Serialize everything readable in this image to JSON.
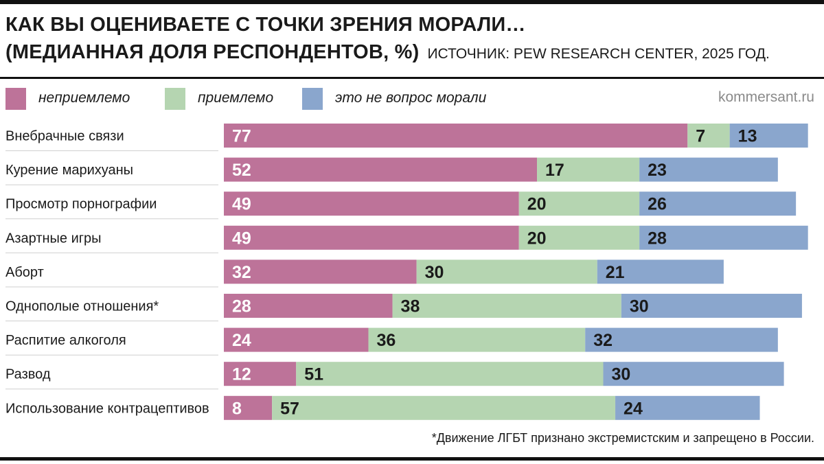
{
  "header": {
    "title_line1": "КАК ВЫ ОЦЕНИВАЕТЕ С ТОЧКИ ЗРЕНИЯ МОРАЛИ…",
    "title_line2": "(МЕДИАННАЯ ДОЛЯ РЕСПОНДЕНТОВ, %)",
    "source": "ИСТОЧНИК: PEW RESEARCH CENTER, 2025 ГОД."
  },
  "brand": "kommersant.ru",
  "footnote": "*Движение ЛГБТ признано экстремистским и запрещено в России.",
  "colors": {
    "unacceptable": "#bd7399",
    "acceptable": "#b5d5b1",
    "not_moral": "#8aa6cd"
  },
  "chart_data": {
    "type": "bar",
    "orientation": "horizontal",
    "stacked": true,
    "legend_position": "top",
    "grid": false,
    "xlim": [
      0,
      100
    ],
    "categories": [
      "Внебрачные связи",
      "Курение марихуаны",
      "Просмотр порнографии",
      "Азартные игры",
      "Аборт",
      "Однополые отношения*",
      "Распитие алкоголя",
      "Развод",
      "Использование контрацептивов"
    ],
    "series": [
      {
        "name": "неприемлемо",
        "color": "#bd7399",
        "values": [
          77,
          52,
          49,
          49,
          32,
          28,
          24,
          12,
          8
        ]
      },
      {
        "name": "приемлемо",
        "color": "#b5d5b1",
        "values": [
          7,
          17,
          20,
          20,
          30,
          38,
          36,
          51,
          57
        ]
      },
      {
        "name": "это не вопрос морали",
        "color": "#8aa6cd",
        "values": [
          13,
          23,
          26,
          28,
          21,
          30,
          32,
          30,
          24
        ]
      }
    ]
  }
}
